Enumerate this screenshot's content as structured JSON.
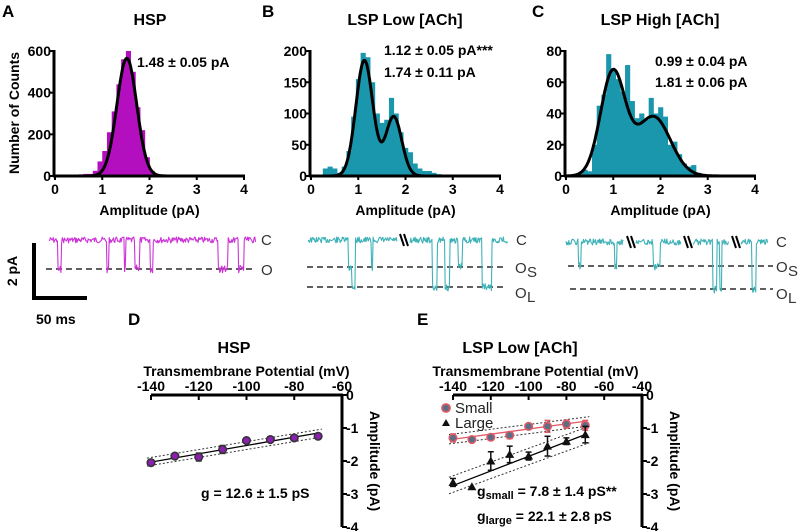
{
  "figure": {
    "panel_labels": [
      "A",
      "B",
      "C",
      "D",
      "E"
    ],
    "colors": {
      "hsp": "#b30fbf",
      "lsp": "#1a97ad",
      "trace_hsp": "#cc33d6",
      "trace_lsp": "#3fb2b8",
      "small": "#e05a66",
      "small_fill": "#5a6f86",
      "large": "#111111",
      "iv_hsp": "#8a1fb0",
      "fit": "#000000"
    },
    "scale_bar": {
      "vertical_label": "2 pA",
      "horizontal_label": "50 ms"
    },
    "traces": [
      {
        "panel": "A",
        "states": [
          "C",
          "O"
        ]
      },
      {
        "panel": "B",
        "states": [
          "C",
          "O",
          "O"
        ],
        "subscripts": [
          "",
          "S",
          "L"
        ],
        "break_marks": 1
      },
      {
        "panel": "C",
        "states": [
          "C",
          "O",
          "O"
        ],
        "subscripts": [
          "",
          "S",
          "L"
        ],
        "break_marks": 3
      }
    ]
  },
  "chart_data": [
    {
      "panel": "A",
      "type": "bar",
      "title": "HSP",
      "xlabel": "Amplitude (pA)",
      "ylabel": "Number of Counts",
      "xlim": [
        0,
        4
      ],
      "ylim": [
        0,
        600
      ],
      "xticks": [
        "0",
        "1",
        "2",
        "3",
        "4"
      ],
      "yticks": [
        "0",
        "200",
        "400",
        "600"
      ],
      "annotations": [
        "1.48 ± 0.05 pA"
      ],
      "bin_width": 0.1,
      "bins_start": [
        0.3,
        0.4,
        0.5,
        0.6,
        0.7,
        0.8,
        0.9,
        1.0,
        1.1,
        1.2,
        1.3,
        1.4,
        1.5,
        1.6,
        1.7,
        1.8,
        1.9,
        2.0,
        2.1
      ],
      "values": [
        3,
        5,
        8,
        10,
        10,
        25,
        70,
        120,
        210,
        310,
        440,
        560,
        600,
        500,
        330,
        220,
        90,
        25,
        5
      ],
      "fit": {
        "type": "gaussian",
        "components": [
          {
            "mean": 1.52,
            "sd": 0.21,
            "peak": 565
          }
        ]
      }
    },
    {
      "panel": "B",
      "type": "bar",
      "title": "LSP Low [ACh]",
      "xlabel": "Amplitude (pA)",
      "ylabel": "",
      "xlim": [
        0,
        4
      ],
      "ylim": [
        0,
        200
      ],
      "xticks": [
        "0",
        "1",
        "2",
        "3",
        "4"
      ],
      "yticks": [
        "0",
        "50",
        "100",
        "150",
        "200"
      ],
      "annotations": [
        "1.12 ± 0.05 pA***",
        "1.74 ± 0.11 pA"
      ],
      "bin_width": 0.1,
      "bins_start": [
        0.25,
        0.35,
        0.45,
        0.55,
        0.65,
        0.75,
        0.85,
        0.95,
        1.05,
        1.15,
        1.25,
        1.35,
        1.45,
        1.55,
        1.65,
        1.75,
        1.85,
        1.95,
        2.05,
        2.15,
        2.25,
        2.35,
        2.45,
        2.55,
        2.65,
        2.85
      ],
      "values": [
        12,
        15,
        12,
        5,
        15,
        40,
        95,
        155,
        197,
        190,
        150,
        100,
        85,
        90,
        125,
        100,
        70,
        45,
        38,
        20,
        12,
        8,
        8,
        5,
        3,
        2
      ],
      "fit": {
        "type": "gaussian",
        "components": [
          {
            "mean": 1.13,
            "sd": 0.18,
            "peak": 185
          },
          {
            "mean": 1.75,
            "sd": 0.17,
            "peak": 95
          }
        ]
      }
    },
    {
      "panel": "C",
      "type": "bar",
      "title": "LSP High [ACh]",
      "xlabel": "Amplitude (pA)",
      "ylabel": "",
      "xlim": [
        0,
        4
      ],
      "ylim": [
        0,
        80
      ],
      "xticks": [
        "0",
        "1",
        "2",
        "3",
        "4"
      ],
      "yticks": [
        "0",
        "20",
        "40",
        "60",
        "80"
      ],
      "annotations": [
        "0.99 ± 0.04 pA",
        "1.81 ± 0.06 pA"
      ],
      "bin_width": 0.1,
      "bins_start": [
        0.25,
        0.35,
        0.45,
        0.55,
        0.65,
        0.75,
        0.85,
        0.95,
        1.05,
        1.15,
        1.25,
        1.35,
        1.45,
        1.55,
        1.65,
        1.75,
        1.85,
        1.95,
        2.05,
        2.15,
        2.25,
        2.35,
        2.45,
        2.55,
        2.65,
        2.75,
        2.95,
        3.15
      ],
      "values": [
        2,
        4,
        3,
        20,
        45,
        52,
        78,
        68,
        62,
        54,
        71,
        48,
        37,
        40,
        36,
        50,
        40,
        44,
        38,
        20,
        22,
        14,
        8,
        6,
        7,
        2,
        1,
        1
      ],
      "fit": {
        "type": "gaussian",
        "components": [
          {
            "mean": 0.99,
            "sd": 0.26,
            "peak": 66
          },
          {
            "mean": 1.85,
            "sd": 0.36,
            "peak": 38
          }
        ]
      }
    },
    {
      "panel": "D",
      "type": "scatter",
      "title": "HSP",
      "xlabel": "Transmembrane Potential (mV)",
      "ylabel": "Amplitude (pA)",
      "xlim": [
        -140,
        -60
      ],
      "ylim": [
        -4,
        0
      ],
      "xticks": [
        "-140",
        "-120",
        "-100",
        "-80",
        "-60"
      ],
      "yticks": [
        "0",
        "-1",
        "-2",
        "-3",
        "-4"
      ],
      "annotations": [
        "g = 12.6 ± 1.5 pS"
      ],
      "series": [
        {
          "name": "HSP",
          "x": [
            -140,
            -130,
            -120,
            -110,
            -100,
            -90,
            -80,
            -70
          ],
          "y": [
            -2.05,
            -1.85,
            -1.88,
            -1.65,
            -1.38,
            -1.35,
            -1.3,
            -1.25
          ],
          "err": [
            0.06,
            0.08,
            0.12,
            0.12,
            0.05,
            0.08,
            0.05,
            0.05
          ],
          "fit": {
            "slope": 0.0126,
            "intercept": -0.27,
            "ci": 0.12
          }
        }
      ]
    },
    {
      "panel": "E",
      "type": "scatter",
      "title": "LSP Low [ACh]",
      "xlabel": "Transmembrane Potential (mV)",
      "ylabel": "Amplitude (pA)",
      "xlim": [
        -140,
        -40
      ],
      "ylim": [
        -4,
        0
      ],
      "xticks": [
        "-140",
        "-120",
        "-100",
        "-80",
        "-60",
        "-40"
      ],
      "yticks": [
        "0",
        "-1",
        "-2",
        "-3",
        "-4"
      ],
      "legend": {
        "placement": "top-left",
        "entries": [
          "Small",
          "Large"
        ]
      },
      "annotations": [
        {
          "base": "g",
          "sub": "small",
          "text": " = 7.8 ± 1.4 pS**"
        },
        {
          "base": "g",
          "sub": "large",
          "text": " = 22.1 ± 2.8 pS"
        }
      ],
      "series": [
        {
          "name": "Small",
          "x": [
            -140,
            -130,
            -120,
            -110,
            -100,
            -90,
            -80,
            -70
          ],
          "y": [
            -1.3,
            -1.35,
            -1.28,
            -1.22,
            -0.95,
            -0.95,
            -0.88,
            -0.92
          ],
          "err": [
            0.12,
            0.05,
            0.05,
            0.1,
            0.05,
            0.18,
            0.12,
            0.15
          ],
          "fit": {
            "slope": 0.0078,
            "intercept": -0.25,
            "ci": 0.14
          }
        },
        {
          "name": "Large",
          "x": [
            -140,
            -130,
            -120,
            -110,
            -100,
            -90,
            -80,
            -70
          ],
          "y": [
            -2.65,
            -2.78,
            -2.0,
            -1.8,
            -1.85,
            -1.55,
            -1.4,
            -1.2
          ],
          "err": [
            0.12,
            0.0,
            0.28,
            0.25,
            0.12,
            0.3,
            0.1,
            0.25
          ],
          "fit": {
            "slope": 0.0221,
            "intercept": 0.35,
            "ci": 0.25
          }
        }
      ]
    }
  ]
}
